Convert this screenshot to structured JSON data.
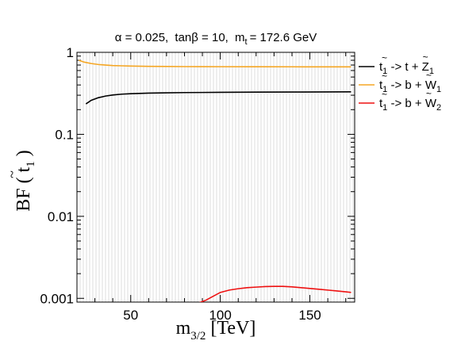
{
  "chart_data": {
    "type": "line",
    "title_parts": {
      "alpha": "α = 0.025,",
      "tanb": "tanβ = 10,",
      "m": "m",
      "t_sub": "t",
      "mass": "= 172.6 GeV"
    },
    "xlabel": {
      "base": "m",
      "sub": "3/2",
      "rest": "[TeV]"
    },
    "ylabel": {
      "base": "BF ( ",
      "tilde": "~",
      "t": "t",
      "sub": "1",
      "close": " )"
    },
    "xlim": [
      20,
      175
    ],
    "ylim": [
      0.0009,
      1.0
    ],
    "yscale": "log",
    "x_ticks": [
      50,
      100,
      150
    ],
    "x_tick_labels": [
      "50",
      "100",
      "150"
    ],
    "y_ticks": [
      0.001,
      0.01,
      0.1,
      1
    ],
    "y_tick_labels": [
      "0.001",
      "0.01",
      "0.1",
      "1"
    ],
    "grid": "dense light vertical hatching",
    "legend_position": "right, outside plot",
    "series": [
      {
        "name": "t̃1 -> t + Z̃1",
        "legend": {
          "tl": "t",
          "tsub": "1",
          "arrow": "-> t + ",
          "p": "Z",
          "psub": "1"
        },
        "color": "#000000",
        "x": [
          25,
          28,
          32,
          36,
          40,
          45,
          50,
          60,
          70,
          80,
          100,
          120,
          140,
          160,
          173
        ],
        "y": [
          0.235,
          0.26,
          0.28,
          0.293,
          0.302,
          0.309,
          0.313,
          0.318,
          0.321,
          0.323,
          0.325,
          0.327,
          0.328,
          0.329,
          0.33
        ]
      },
      {
        "name": "t̃1 -> b + W̃1",
        "legend": {
          "tl": "t",
          "tsub": "1",
          "arrow": "-> b + ",
          "p": "W",
          "psub": "1"
        },
        "color": "#f5a623",
        "x": [
          21,
          24,
          28,
          32,
          36,
          40,
          45,
          50,
          60,
          70,
          80,
          100,
          120,
          140,
          160,
          173
        ],
        "y": [
          0.8,
          0.76,
          0.73,
          0.71,
          0.7,
          0.69,
          0.685,
          0.68,
          0.675,
          0.672,
          0.67,
          0.668,
          0.667,
          0.666,
          0.665,
          0.665
        ]
      },
      {
        "name": "t̃1 -> b + W̃2",
        "legend": {
          "tl": "t",
          "tsub": "1",
          "arrow": "-> b + ",
          "p": "W",
          "psub": "2"
        },
        "color": "#ee1111",
        "x": [
          88,
          92,
          96,
          100,
          105,
          110,
          115,
          120,
          125,
          130,
          135,
          140,
          145,
          150,
          155,
          160,
          165,
          170,
          173
        ],
        "y": [
          0.00088,
          0.00095,
          0.00106,
          0.00118,
          0.00126,
          0.00131,
          0.00135,
          0.00137,
          0.00139,
          0.0014,
          0.0014,
          0.00138,
          0.00135,
          0.00132,
          0.00129,
          0.00126,
          0.00123,
          0.0012,
          0.00118
        ]
      }
    ]
  }
}
